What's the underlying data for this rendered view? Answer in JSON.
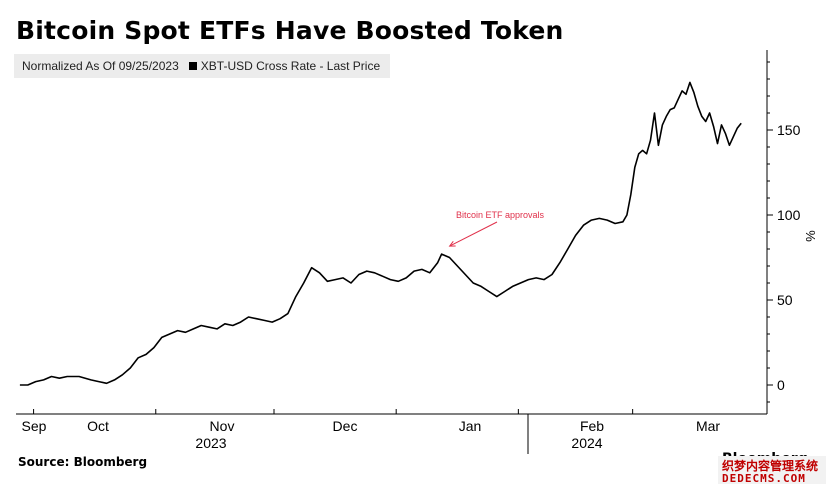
{
  "header": {
    "title": "Bitcoin Spot ETFs Have Boosted Token",
    "normalized_note": "Normalized As Of 09/25/2023",
    "legend_label": "XBT-USD Cross Rate - Last Price"
  },
  "footer": {
    "source": "Source: Bloomberg",
    "brand": "Bloomberg",
    "watermark_line1": "织梦内容管理系统",
    "watermark_line2": "DEDECMS.COM"
  },
  "colors": {
    "line": "#000000",
    "annotation": "#e0304a",
    "legend_bg": "#ececec"
  },
  "chart_data": {
    "type": "line",
    "title": "Bitcoin Spot ETFs Have Boosted Token",
    "subtitle": "Normalized As Of 09/25/2023",
    "ylabel": "%",
    "ylim": [
      -10,
      195
    ],
    "y_ticks": [
      0,
      50,
      100,
      150
    ],
    "y_axis_position": "right",
    "grid": false,
    "legend_position": "top-left",
    "x_tick_labels": [
      {
        "label": "Sep",
        "date": "2023-09-25"
      },
      {
        "label": "Oct",
        "date": "2023-10-01"
      },
      {
        "label": "Nov",
        "date": "2023-11-01"
      },
      {
        "label": "Dec",
        "date": "2023-12-01"
      },
      {
        "label": "Jan",
        "date": "2024-01-01"
      },
      {
        "label": "Feb",
        "date": "2024-02-01"
      },
      {
        "label": "Mar",
        "date": "2024-03-01"
      }
    ],
    "year_labels": [
      {
        "label": "2023",
        "date": "2023-11-01"
      },
      {
        "label": "2024",
        "date": "2024-02-01"
      }
    ],
    "annotations": [
      {
        "text": "Bitcoin ETF approvals",
        "date": "2024-01-10",
        "value": 77
      }
    ],
    "series": [
      {
        "name": "XBT-USD Cross Rate - Last Price",
        "points": [
          [
            "2023-09-25",
            0
          ],
          [
            "2023-09-27",
            0
          ],
          [
            "2023-09-29",
            2
          ],
          [
            "2023-10-01",
            3
          ],
          [
            "2023-10-03",
            5
          ],
          [
            "2023-10-05",
            4
          ],
          [
            "2023-10-07",
            5
          ],
          [
            "2023-10-10",
            5
          ],
          [
            "2023-10-13",
            3
          ],
          [
            "2023-10-15",
            2
          ],
          [
            "2023-10-17",
            1
          ],
          [
            "2023-10-19",
            3
          ],
          [
            "2023-10-21",
            6
          ],
          [
            "2023-10-23",
            10
          ],
          [
            "2023-10-25",
            16
          ],
          [
            "2023-10-27",
            18
          ],
          [
            "2023-10-29",
            22
          ],
          [
            "2023-10-31",
            28
          ],
          [
            "2023-11-02",
            30
          ],
          [
            "2023-11-04",
            32
          ],
          [
            "2023-11-06",
            31
          ],
          [
            "2023-11-08",
            33
          ],
          [
            "2023-11-10",
            35
          ],
          [
            "2023-11-12",
            34
          ],
          [
            "2023-11-14",
            33
          ],
          [
            "2023-11-16",
            36
          ],
          [
            "2023-11-18",
            35
          ],
          [
            "2023-11-20",
            37
          ],
          [
            "2023-11-22",
            40
          ],
          [
            "2023-11-24",
            39
          ],
          [
            "2023-11-26",
            38
          ],
          [
            "2023-11-28",
            37
          ],
          [
            "2023-11-30",
            39
          ],
          [
            "2023-12-02",
            42
          ],
          [
            "2023-12-04",
            52
          ],
          [
            "2023-12-06",
            60
          ],
          [
            "2023-12-08",
            69
          ],
          [
            "2023-12-10",
            66
          ],
          [
            "2023-12-12",
            61
          ],
          [
            "2023-12-14",
            62
          ],
          [
            "2023-12-16",
            63
          ],
          [
            "2023-12-18",
            60
          ],
          [
            "2023-12-20",
            65
          ],
          [
            "2023-12-22",
            67
          ],
          [
            "2023-12-24",
            66
          ],
          [
            "2023-12-26",
            64
          ],
          [
            "2023-12-28",
            62
          ],
          [
            "2023-12-30",
            61
          ],
          [
            "2024-01-01",
            63
          ],
          [
            "2024-01-03",
            67
          ],
          [
            "2024-01-05",
            68
          ],
          [
            "2024-01-07",
            66
          ],
          [
            "2024-01-09",
            72
          ],
          [
            "2024-01-10",
            77
          ],
          [
            "2024-01-12",
            75
          ],
          [
            "2024-01-14",
            70
          ],
          [
            "2024-01-16",
            65
          ],
          [
            "2024-01-18",
            60
          ],
          [
            "2024-01-20",
            58
          ],
          [
            "2024-01-22",
            55
          ],
          [
            "2024-01-24",
            52
          ],
          [
            "2024-01-26",
            55
          ],
          [
            "2024-01-28",
            58
          ],
          [
            "2024-01-30",
            60
          ],
          [
            "2024-02-01",
            62
          ],
          [
            "2024-02-03",
            63
          ],
          [
            "2024-02-05",
            62
          ],
          [
            "2024-02-07",
            65
          ],
          [
            "2024-02-09",
            72
          ],
          [
            "2024-02-11",
            80
          ],
          [
            "2024-02-13",
            88
          ],
          [
            "2024-02-15",
            94
          ],
          [
            "2024-02-17",
            97
          ],
          [
            "2024-02-19",
            98
          ],
          [
            "2024-02-21",
            97
          ],
          [
            "2024-02-23",
            95
          ],
          [
            "2024-02-25",
            96
          ],
          [
            "2024-02-26",
            100
          ],
          [
            "2024-02-27",
            112
          ],
          [
            "2024-02-28",
            128
          ],
          [
            "2024-02-29",
            136
          ],
          [
            "2024-03-01",
            138
          ],
          [
            "2024-03-02",
            136
          ],
          [
            "2024-03-03",
            144
          ],
          [
            "2024-03-04",
            160
          ],
          [
            "2024-03-05",
            141
          ],
          [
            "2024-03-06",
            153
          ],
          [
            "2024-03-07",
            158
          ],
          [
            "2024-03-08",
            162
          ],
          [
            "2024-03-09",
            163
          ],
          [
            "2024-03-10",
            168
          ],
          [
            "2024-03-11",
            173
          ],
          [
            "2024-03-12",
            171
          ],
          [
            "2024-03-13",
            178
          ],
          [
            "2024-03-14",
            172
          ],
          [
            "2024-03-15",
            164
          ],
          [
            "2024-03-16",
            158
          ],
          [
            "2024-03-17",
            155
          ],
          [
            "2024-03-18",
            160
          ],
          [
            "2024-03-19",
            152
          ],
          [
            "2024-03-20",
            142
          ],
          [
            "2024-03-21",
            153
          ],
          [
            "2024-03-22",
            148
          ],
          [
            "2024-03-23",
            141
          ],
          [
            "2024-03-24",
            146
          ],
          [
            "2024-03-25",
            151
          ],
          [
            "2024-03-26",
            154
          ]
        ]
      }
    ]
  }
}
